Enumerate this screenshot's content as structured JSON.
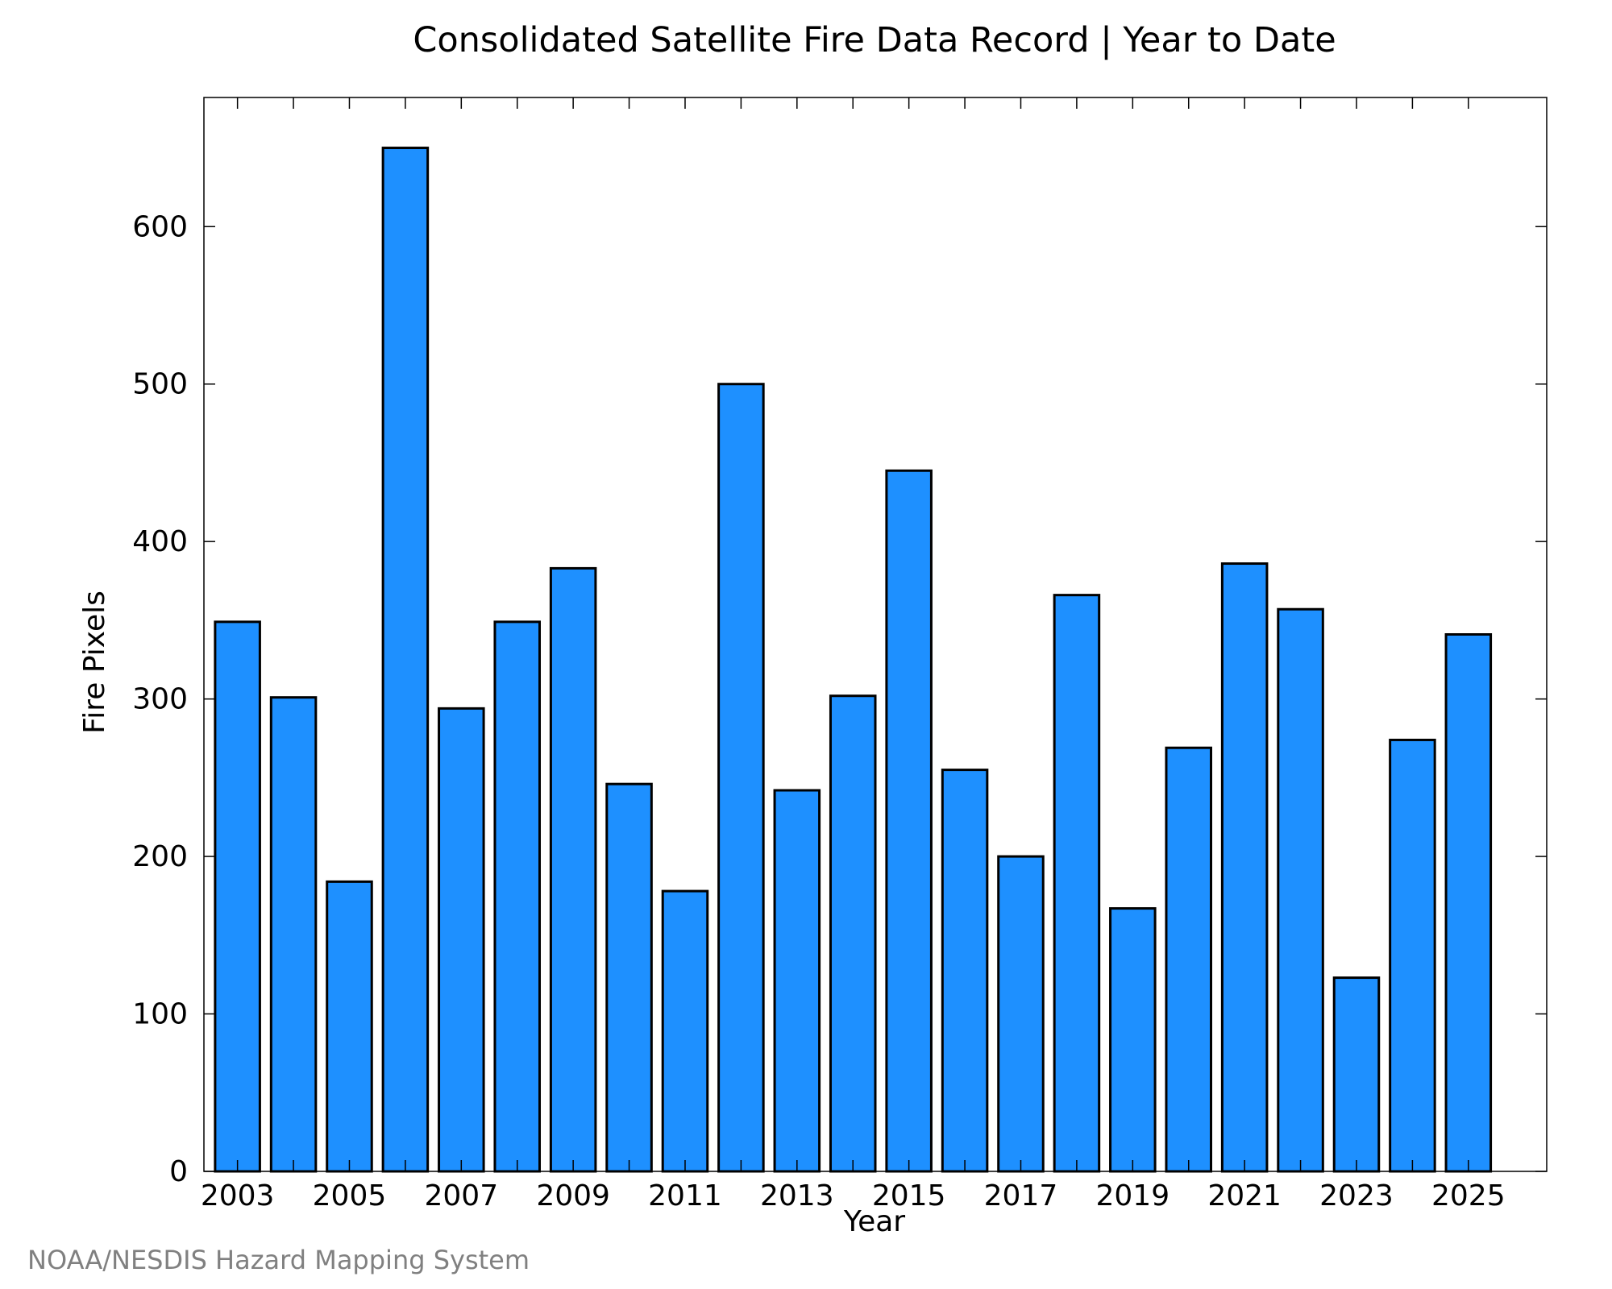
{
  "chart_data": {
    "type": "bar",
    "title": "Consolidated Satellite Fire Data Record | Year to Date",
    "xlabel": "Year",
    "ylabel": "Fire Pixels",
    "categories": [
      2003,
      2004,
      2005,
      2006,
      2007,
      2008,
      2009,
      2010,
      2011,
      2012,
      2013,
      2014,
      2015,
      2016,
      2017,
      2018,
      2019,
      2020,
      2021,
      2022,
      2023,
      2024,
      2025
    ],
    "values": [
      349,
      301,
      184,
      650,
      294,
      349,
      383,
      246,
      178,
      500,
      242,
      302,
      445,
      255,
      200,
      366,
      167,
      269,
      386,
      357,
      123,
      274,
      341
    ],
    "xlim": [
      2002.4,
      2026.4
    ],
    "ylim": [
      0,
      682
    ],
    "x_ticks": [
      2003,
      2005,
      2007,
      2009,
      2011,
      2013,
      2015,
      2017,
      2019,
      2021,
      2023,
      2025
    ],
    "x_tick_labels": [
      "2003",
      "2005",
      "2007",
      "2009",
      "2011",
      "2013",
      "2015",
      "2017",
      "2019",
      "2021",
      "2023",
      "2025"
    ],
    "y_ticks": [
      0,
      100,
      200,
      300,
      400,
      500,
      600
    ],
    "y_tick_labels": [
      "0",
      "100",
      "200",
      "300",
      "400",
      "500",
      "600"
    ],
    "bar_width": 0.8,
    "grid": false,
    "legend": "none",
    "bar_color": "#1E90FF",
    "edge_color": "#000000"
  },
  "credit": "NOAA/NESDIS Hazard Mapping System"
}
